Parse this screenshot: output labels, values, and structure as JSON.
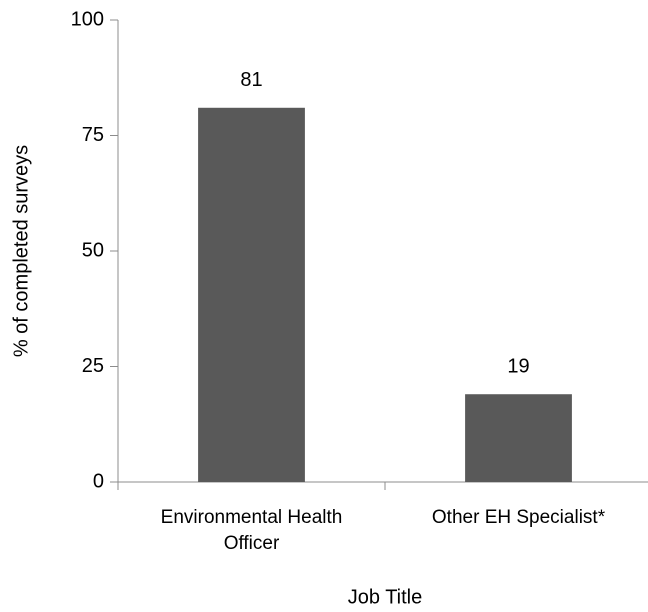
{
  "chart_data": {
    "type": "bar",
    "categories": [
      "Environmental Health Officer",
      "Other EH Specialist*"
    ],
    "values": [
      81,
      19
    ],
    "color": "#595959",
    "xlabel": "Job Title",
    "ylabel": "% of completed surveys",
    "ylim": [
      0,
      100
    ],
    "yticks": [
      0,
      25,
      50,
      75,
      100
    ],
    "grid": false
  }
}
